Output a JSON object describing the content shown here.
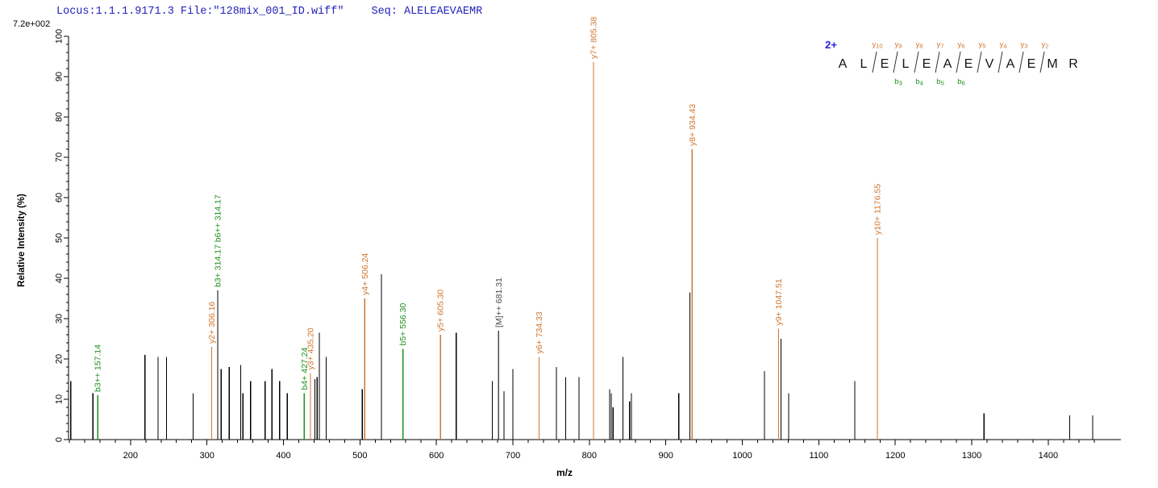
{
  "header": {
    "locus_file": "Locus:1.1.1.9171.3 File:\"128mix_001_ID.wiff\"",
    "seq": "Seq: ALELEAEVAEMR",
    "max_intensity": "7.2e+002"
  },
  "axes": {
    "x_label": "m/z",
    "y_label": "Relative  Intensity (%)",
    "x_min": 119,
    "x_max": 1495,
    "x_label_min": 200,
    "x_label_max": 1400,
    "x_major_step": 100,
    "x_minor_step": 20,
    "y_min": 0,
    "y_max": 100,
    "y_major_step": 10,
    "y_minor_step": 2
  },
  "colors": {
    "y_ion": "#d0762f",
    "b_ion": "#1f8f1f",
    "precursor": "#4a4a4a",
    "peak": "#000000",
    "axis": "#000000",
    "residue": "#111111",
    "header_text": "#2222bb",
    "charge_text": "#2222dd"
  },
  "sequence_panel": {
    "charge": "2+",
    "residues": [
      "A",
      "L",
      "E",
      "L",
      "E",
      "A",
      "E",
      "V",
      "A",
      "E",
      "M",
      "R"
    ],
    "y_ions": [
      {
        "label": "y",
        "num": "10",
        "after": 2
      },
      {
        "label": "y",
        "num": "9",
        "after": 3
      },
      {
        "label": "y",
        "num": "8",
        "after": 4
      },
      {
        "label": "y",
        "num": "7",
        "after": 5
      },
      {
        "label": "y",
        "num": "6",
        "after": 6
      },
      {
        "label": "y",
        "num": "5",
        "after": 7
      },
      {
        "label": "y",
        "num": "4",
        "after": 8
      },
      {
        "label": "y",
        "num": "3",
        "after": 9
      },
      {
        "label": "y",
        "num": "2",
        "after": 10
      }
    ],
    "b_ions": [
      {
        "label": "b",
        "num": "3",
        "after": 3
      },
      {
        "label": "b",
        "num": "4",
        "after": 4
      },
      {
        "label": "b",
        "num": "5",
        "after": 5
      },
      {
        "label": "b",
        "num": "6",
        "after": 6
      }
    ]
  },
  "chart_data": {
    "type": "bar",
    "subtype": "ms2-stick-spectrum",
    "title": "",
    "xlabel": "m/z",
    "ylabel": "Relative Intensity (%)",
    "xlim": [
      119,
      1495
    ],
    "ylim": [
      0,
      100
    ],
    "base_peak_intensity": "7.2e+002",
    "peaks": [
      {
        "mz": 122,
        "intensity": 14.5,
        "type": "unassigned"
      },
      {
        "mz": 151,
        "intensity": 11.5,
        "type": "unassigned"
      },
      {
        "mz": 157.14,
        "intensity": 11,
        "type": "b",
        "label": "b3++ 157.14"
      },
      {
        "mz": 219,
        "intensity": 21,
        "type": "unassigned"
      },
      {
        "mz": 236,
        "intensity": 20.5,
        "type": "unassigned"
      },
      {
        "mz": 247,
        "intensity": 20.5,
        "type": "unassigned"
      },
      {
        "mz": 282,
        "intensity": 11.5,
        "type": "unassigned"
      },
      {
        "mz": 306.16,
        "intensity": 23,
        "type": "y",
        "label": "y2+ 306.16"
      },
      {
        "mz": 314.17,
        "intensity": 37,
        "type": "b",
        "label": "b3+ 314.17  b6++ 314.17",
        "line_color": "#000000"
      },
      {
        "mz": 318.5,
        "intensity": 17.5,
        "type": "unassigned"
      },
      {
        "mz": 329,
        "intensity": 18,
        "type": "unassigned"
      },
      {
        "mz": 344,
        "intensity": 18.5,
        "type": "unassigned"
      },
      {
        "mz": 347,
        "intensity": 11.5,
        "type": "unassigned"
      },
      {
        "mz": 357,
        "intensity": 14.5,
        "type": "unassigned"
      },
      {
        "mz": 376,
        "intensity": 14.5,
        "type": "unassigned"
      },
      {
        "mz": 385,
        "intensity": 17.5,
        "type": "unassigned"
      },
      {
        "mz": 395,
        "intensity": 14.5,
        "type": "unassigned"
      },
      {
        "mz": 405,
        "intensity": 11.5,
        "type": "unassigned"
      },
      {
        "mz": 427.24,
        "intensity": 11.5,
        "type": "b",
        "label": "b4+ 427.24"
      },
      {
        "mz": 435.2,
        "intensity": 16.5,
        "type": "y",
        "label": "y3+ 435.20"
      },
      {
        "mz": 441,
        "intensity": 15,
        "type": "unassigned"
      },
      {
        "mz": 444,
        "intensity": 15.5,
        "type": "unassigned"
      },
      {
        "mz": 447,
        "intensity": 26.5,
        "type": "unassigned"
      },
      {
        "mz": 456,
        "intensity": 20.5,
        "type": "unassigned"
      },
      {
        "mz": 503,
        "intensity": 12.5,
        "type": "unassigned"
      },
      {
        "mz": 506.24,
        "intensity": 35,
        "type": "y",
        "label": "y4+ 506.24"
      },
      {
        "mz": 528,
        "intensity": 41,
        "type": "unassigned"
      },
      {
        "mz": 556.3,
        "intensity": 22.5,
        "type": "b",
        "label": "b5+ 556.30"
      },
      {
        "mz": 605.3,
        "intensity": 26,
        "type": "y",
        "label": "y5+ 605.30"
      },
      {
        "mz": 626,
        "intensity": 26.5,
        "type": "unassigned"
      },
      {
        "mz": 673,
        "intensity": 14.5,
        "type": "unassigned"
      },
      {
        "mz": 681.31,
        "intensity": 27,
        "type": "precursor",
        "label": "[M]++ 681.31"
      },
      {
        "mz": 688.5,
        "intensity": 12,
        "type": "unassigned"
      },
      {
        "mz": 700,
        "intensity": 17.5,
        "type": "unassigned"
      },
      {
        "mz": 734.33,
        "intensity": 20.5,
        "type": "y",
        "label": "y6+ 734.33"
      },
      {
        "mz": 757,
        "intensity": 18,
        "type": "unassigned"
      },
      {
        "mz": 769,
        "intensity": 15.5,
        "type": "unassigned"
      },
      {
        "mz": 786.5,
        "intensity": 15.5,
        "type": "unassigned"
      },
      {
        "mz": 805.38,
        "intensity": 100,
        "type": "y",
        "label": "y7+ 805.38"
      },
      {
        "mz": 826.5,
        "intensity": 12.5,
        "type": "unassigned"
      },
      {
        "mz": 828.5,
        "intensity": 11.5,
        "type": "unassigned"
      },
      {
        "mz": 831,
        "intensity": 8,
        "type": "unassigned"
      },
      {
        "mz": 844,
        "intensity": 20.5,
        "type": "unassigned"
      },
      {
        "mz": 852.5,
        "intensity": 9.5,
        "type": "unassigned"
      },
      {
        "mz": 855,
        "intensity": 11.5,
        "type": "unassigned"
      },
      {
        "mz": 917,
        "intensity": 11.5,
        "type": "unassigned"
      },
      {
        "mz": 931.5,
        "intensity": 36.5,
        "type": "unassigned"
      },
      {
        "mz": 934.43,
        "intensity": 72,
        "type": "y",
        "label": "y8+ 934.43"
      },
      {
        "mz": 1029,
        "intensity": 17,
        "type": "unassigned"
      },
      {
        "mz": 1047.51,
        "intensity": 27.5,
        "type": "y",
        "label": "y9+ 1047.51"
      },
      {
        "mz": 1050.5,
        "intensity": 25,
        "type": "unassigned"
      },
      {
        "mz": 1060.5,
        "intensity": 11.5,
        "type": "unassigned"
      },
      {
        "mz": 1147,
        "intensity": 14.5,
        "type": "unassigned"
      },
      {
        "mz": 1176.55,
        "intensity": 50,
        "type": "y",
        "label": "y10+ 1176.55"
      },
      {
        "mz": 1316,
        "intensity": 6.5,
        "type": "unassigned"
      },
      {
        "mz": 1428,
        "intensity": 6,
        "type": "unassigned"
      },
      {
        "mz": 1458,
        "intensity": 6,
        "type": "unassigned"
      }
    ]
  }
}
